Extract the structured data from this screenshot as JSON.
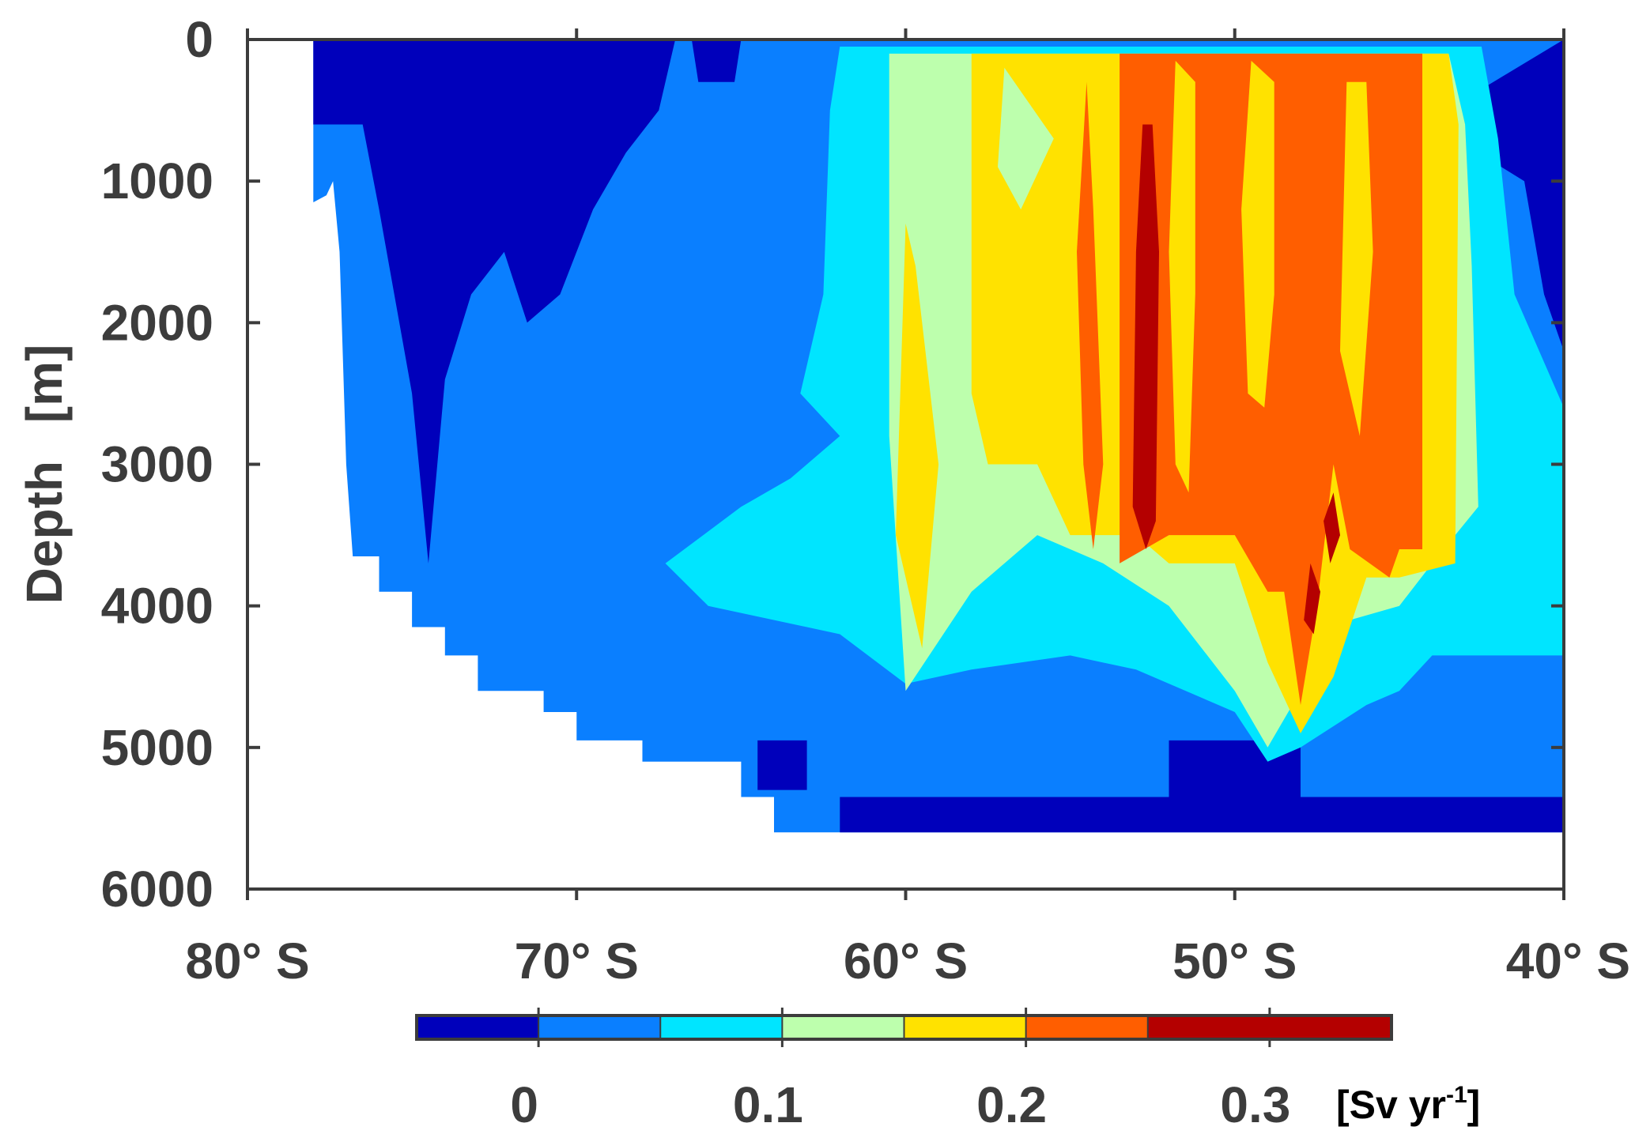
{
  "chart_data": {
    "type": "heatmap",
    "title": "",
    "xlabel": "",
    "ylabel": "Depth [m]",
    "ylabel_parts": [
      "Depth",
      "[m]"
    ],
    "x_ticks": [
      {
        "value": -80,
        "label": "80° S"
      },
      {
        "value": -70,
        "label": "70° S"
      },
      {
        "value": -60,
        "label": "60° S"
      },
      {
        "value": -50,
        "label": "50° S"
      },
      {
        "value": -40,
        "label": "40° S"
      }
    ],
    "y_ticks": [
      {
        "value": 0,
        "label": "0"
      },
      {
        "value": 1000,
        "label": "1000"
      },
      {
        "value": 2000,
        "label": "2000"
      },
      {
        "value": 3000,
        "label": "3000"
      },
      {
        "value": 4000,
        "label": "4000"
      },
      {
        "value": 5000,
        "label": "5000"
      },
      {
        "value": 6000,
        "label": "6000"
      }
    ],
    "xlim": [
      -80,
      -40
    ],
    "ylim": [
      0,
      6000
    ],
    "y_reversed": true,
    "colorbar": {
      "levels": [
        -0.05,
        0,
        0.05,
        0.1,
        0.15,
        0.2,
        0.25,
        0.35
      ],
      "colors": [
        "#0000bb",
        "#0a7fff",
        "#00e5ff",
        "#bdffad",
        "#ffe200",
        "#ff5e00",
        "#b40000"
      ],
      "tick_values": [
        0,
        0.1,
        0.2,
        0.3
      ],
      "tick_labels": [
        "0",
        "0.1",
        "0.2",
        "0.3"
      ],
      "unit_label": "[Sv yr",
      "unit_exponent": "-1",
      "unit_close": "]"
    },
    "regions": [
      {
        "name": "ocean-domain",
        "value": 0.02,
        "poly": [
          [
            -78,
            0
          ],
          [
            -40,
            0
          ],
          [
            -40,
            5600
          ],
          [
            -64,
            5600
          ],
          [
            -64,
            5350
          ],
          [
            -65,
            5350
          ],
          [
            -65,
            5100
          ],
          [
            -68,
            5100
          ],
          [
            -68,
            4950
          ],
          [
            -70,
            4950
          ],
          [
            -70,
            4750
          ],
          [
            -71,
            4750
          ],
          [
            -71,
            4600
          ],
          [
            -73,
            4600
          ],
          [
            -73,
            4350
          ],
          [
            -74,
            4350
          ],
          [
            -74,
            4150
          ],
          [
            -75,
            4150
          ],
          [
            -75,
            3900
          ],
          [
            -76,
            3900
          ],
          [
            -76,
            3650
          ],
          [
            -76.8,
            3650
          ],
          [
            -77,
            3000
          ],
          [
            -77.2,
            1500
          ],
          [
            -77.4,
            1000
          ],
          [
            -77.6,
            1100
          ],
          [
            -78,
            1150
          ]
        ]
      },
      {
        "name": "surface-blue",
        "value": -0.01,
        "poly": [
          [
            -78,
            0
          ],
          [
            -67,
            0
          ],
          [
            -67.5,
            500
          ],
          [
            -68.5,
            800
          ],
          [
            -69.5,
            1200
          ],
          [
            -70.5,
            1800
          ],
          [
            -71.5,
            2000
          ],
          [
            -72.2,
            1500
          ],
          [
            -73.2,
            1800
          ],
          [
            -74,
            2400
          ],
          [
            -74.5,
            3700
          ],
          [
            -75,
            2500
          ],
          [
            -76,
            1200
          ],
          [
            -76.5,
            600
          ],
          [
            -78,
            600
          ]
        ]
      },
      {
        "name": "surface-blue-small",
        "value": -0.01,
        "poly": [
          [
            -66.5,
            0
          ],
          [
            -65,
            0
          ],
          [
            -65.2,
            300
          ],
          [
            -66.3,
            300
          ]
        ]
      },
      {
        "name": "northern-blue",
        "value": -0.01,
        "poly": [
          [
            -42.5,
            350
          ],
          [
            -40,
            0
          ],
          [
            -40,
            2200
          ],
          [
            -40.6,
            1800
          ],
          [
            -41.2,
            1000
          ],
          [
            -42.6,
            800
          ]
        ]
      },
      {
        "name": "bottom-blue",
        "value": -0.01,
        "poly": [
          [
            -62,
            5350
          ],
          [
            -40,
            5350
          ],
          [
            -40,
            5600
          ],
          [
            -62,
            5600
          ]
        ]
      },
      {
        "name": "bottom-blue-patches",
        "value": -0.01,
        "poly": [
          [
            -64.5,
            4950
          ],
          [
            -63,
            4950
          ],
          [
            -63,
            5300
          ],
          [
            -64.5,
            5300
          ]
        ]
      },
      {
        "name": "bottom-blue-patches-2",
        "value": -0.01,
        "poly": [
          [
            -52,
            4950
          ],
          [
            -48,
            4950
          ],
          [
            -48,
            5350
          ],
          [
            -52,
            5350
          ]
        ]
      },
      {
        "name": "outer-cyan",
        "value": 0.07,
        "poly": [
          [
            -62,
            50
          ],
          [
            -42.5,
            50
          ],
          [
            -42,
            700
          ],
          [
            -41.5,
            1800
          ],
          [
            -40,
            2600
          ],
          [
            -40,
            4350
          ],
          [
            -44,
            4350
          ],
          [
            -45,
            4600
          ],
          [
            -46,
            4700
          ],
          [
            -48,
            5000
          ],
          [
            -49,
            5100
          ],
          [
            -50,
            4750
          ],
          [
            -53,
            4450
          ],
          [
            -55,
            4350
          ],
          [
            -58,
            4450
          ],
          [
            -60,
            4550
          ],
          [
            -62,
            4200
          ],
          [
            -66,
            4000
          ],
          [
            -67.3,
            3700
          ],
          [
            -65,
            3300
          ],
          [
            -63.5,
            3100
          ],
          [
            -62,
            2800
          ],
          [
            -63.2,
            2500
          ],
          [
            -62.5,
            1800
          ],
          [
            -62.3,
            500
          ]
        ]
      },
      {
        "name": "green-band",
        "value": 0.12,
        "poly": [
          [
            -60.5,
            100
          ],
          [
            -43.5,
            100
          ],
          [
            -43,
            600
          ],
          [
            -42.8,
            1600
          ],
          [
            -42.6,
            3300
          ],
          [
            -44,
            3700
          ],
          [
            -45,
            4000
          ],
          [
            -46.5,
            4100
          ],
          [
            -48,
            4600
          ],
          [
            -49,
            5000
          ],
          [
            -50,
            4600
          ],
          [
            -52,
            4000
          ],
          [
            -54,
            3700
          ],
          [
            -56,
            3500
          ],
          [
            -58,
            3900
          ],
          [
            -60,
            4600
          ],
          [
            -60.5,
            2800
          ]
        ]
      },
      {
        "name": "yellow-band",
        "value": 0.17,
        "poly": [
          [
            -58,
            100
          ],
          [
            -43.5,
            100
          ],
          [
            -43.2,
            600
          ],
          [
            -43.3,
            3700
          ],
          [
            -45,
            3800
          ],
          [
            -46,
            3800
          ],
          [
            -47,
            4500
          ],
          [
            -48,
            4900
          ],
          [
            -49,
            4400
          ],
          [
            -50,
            3700
          ],
          [
            -52,
            3700
          ],
          [
            -53,
            3500
          ],
          [
            -55,
            3500
          ],
          [
            -56,
            3000
          ],
          [
            -57.5,
            3000
          ],
          [
            -58,
            2500
          ]
        ]
      },
      {
        "name": "yellow-left-strand",
        "value": 0.17,
        "poly": [
          [
            -60,
            1300
          ],
          [
            -59.7,
            1600
          ],
          [
            -59,
            3000
          ],
          [
            -59.5,
            4300
          ],
          [
            -60.3,
            3500
          ]
        ]
      },
      {
        "name": "green-tongue-left",
        "value": 0.12,
        "poly": [
          [
            -57,
            200
          ],
          [
            -55.5,
            700
          ],
          [
            -56.5,
            1200
          ],
          [
            -57.2,
            900
          ]
        ]
      },
      {
        "name": "orange-band",
        "value": 0.22,
        "poly": [
          [
            -53.5,
            100
          ],
          [
            -44.3,
            100
          ],
          [
            -44.3,
            3600
          ],
          [
            -45,
            3600
          ],
          [
            -45.3,
            3800
          ],
          [
            -46.5,
            3600
          ],
          [
            -47,
            3000
          ],
          [
            -47.5,
            4000
          ],
          [
            -48,
            4700
          ],
          [
            -48.5,
            3900
          ],
          [
            -49,
            3900
          ],
          [
            -50,
            3500
          ],
          [
            -52,
            3500
          ],
          [
            -53.5,
            3700
          ]
        ]
      },
      {
        "name": "orange-left-strand",
        "value": 0.22,
        "poly": [
          [
            -54.5,
            300
          ],
          [
            -54.3,
            1200
          ],
          [
            -54,
            3000
          ],
          [
            -54.3,
            3600
          ],
          [
            -54.6,
            3000
          ],
          [
            -54.8,
            1500
          ]
        ]
      },
      {
        "name": "yellow-tongue-1",
        "value": 0.17,
        "poly": [
          [
            -51.8,
            150
          ],
          [
            -51.2,
            300
          ],
          [
            -51.2,
            1800
          ],
          [
            -51.4,
            3200
          ],
          [
            -51.8,
            3000
          ],
          [
            -52,
            1500
          ]
        ]
      },
      {
        "name": "yellow-tongue-2",
        "value": 0.17,
        "poly": [
          [
            -49.5,
            150
          ],
          [
            -48.8,
            300
          ],
          [
            -48.8,
            1800
          ],
          [
            -49.1,
            2600
          ],
          [
            -49.6,
            2500
          ],
          [
            -49.8,
            1200
          ]
        ]
      },
      {
        "name": "yellow-tongue-3",
        "value": 0.17,
        "poly": [
          [
            -46.6,
            300
          ],
          [
            -46,
            300
          ],
          [
            -45.8,
            1500
          ],
          [
            -46.2,
            2800
          ],
          [
            -46.8,
            2200
          ]
        ]
      },
      {
        "name": "dark-red-core",
        "value": 0.3,
        "poly": [
          [
            -52.8,
            600
          ],
          [
            -52.5,
            600
          ],
          [
            -52.3,
            1500
          ],
          [
            -52.4,
            3400
          ],
          [
            -52.7,
            3600
          ],
          [
            -53.1,
            3300
          ],
          [
            -53,
            1500
          ]
        ]
      },
      {
        "name": "dark-red-deep",
        "value": 0.3,
        "poly": [
          [
            -47.7,
            3700
          ],
          [
            -47.4,
            3900
          ],
          [
            -47.6,
            4200
          ],
          [
            -47.9,
            4100
          ]
        ]
      },
      {
        "name": "dark-red-deep-2",
        "value": 0.3,
        "poly": [
          [
            -47,
            3200
          ],
          [
            -46.8,
            3500
          ],
          [
            -47.1,
            3700
          ],
          [
            -47.3,
            3400
          ]
        ]
      }
    ]
  }
}
